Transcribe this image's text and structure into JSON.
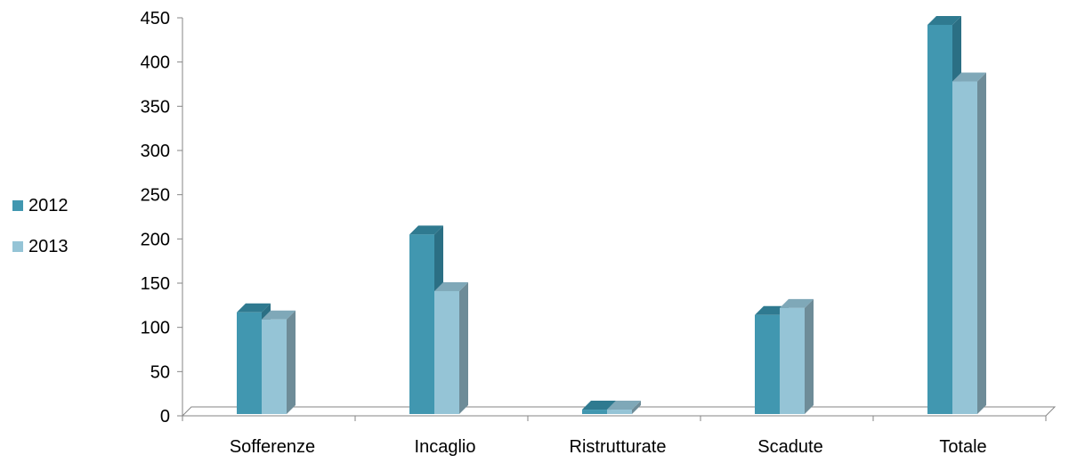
{
  "chart_data": {
    "type": "bar",
    "categories": [
      "Sofferenze",
      "Incaglio",
      "Ristrutturate",
      "Scadute",
      "Totale"
    ],
    "series": [
      {
        "name": "2012",
        "values": [
          117,
          205,
          7,
          114,
          442
        ],
        "color": "#4197B0",
        "side_color": "#2B6F84",
        "top_color": "#2F7A90"
      },
      {
        "name": "2013",
        "values": [
          109,
          141,
          7,
          122,
          378
        ],
        "color": "#95C4D6",
        "side_color": "#6E8C98",
        "top_color": "#7FA8B8"
      }
    ],
    "ylim": [
      0,
      450
    ],
    "yticks": [
      "0",
      "50",
      "100",
      "150",
      "200",
      "250",
      "300",
      "350",
      "400",
      "450"
    ],
    "ytick_values": [
      0,
      50,
      100,
      150,
      200,
      250,
      300,
      350,
      400,
      450
    ],
    "legend": {
      "position": "left"
    },
    "grid": false,
    "axis_color": "#868686"
  }
}
